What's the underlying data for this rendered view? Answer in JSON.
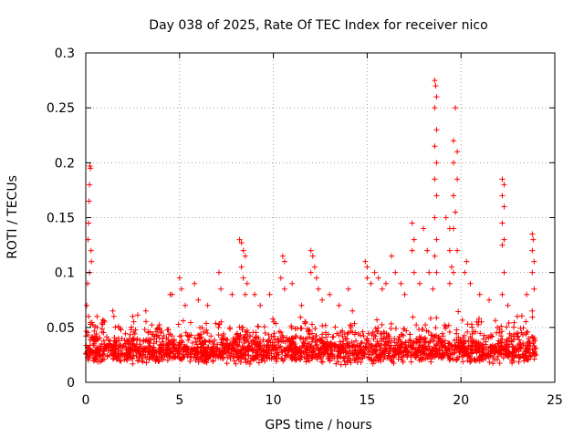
{
  "chart_data": {
    "type": "scatter",
    "title": "Day 038 of 2025, Rate Of TEC Index for receiver nico",
    "xlabel": "GPS time / hours",
    "ylabel": "ROTI / TECUs",
    "xlim": [
      0,
      25
    ],
    "ylim": [
      0,
      0.3
    ],
    "x_ticks": [
      0,
      5,
      10,
      15,
      20,
      25
    ],
    "x_tick_labels": [
      "0",
      "5",
      "10",
      "15",
      "20",
      "25"
    ],
    "y_ticks": [
      0,
      0.05,
      0.1,
      0.15,
      0.2,
      0.25,
      0.3
    ],
    "y_tick_labels": [
      "0",
      "0.05",
      "0.1",
      "0.15",
      "0.2",
      "0.25",
      "0.3"
    ],
    "grid": true,
    "marker": "+",
    "color": "#ff0000",
    "series": [
      {
        "name": "ROTI",
        "points": [
          [
            0.05,
            0.07
          ],
          [
            0.1,
            0.09
          ],
          [
            0.12,
            0.13
          ],
          [
            0.15,
            0.145
          ],
          [
            0.18,
            0.165
          ],
          [
            0.2,
            0.18
          ],
          [
            0.22,
            0.197
          ],
          [
            0.25,
            0.195
          ],
          [
            0.28,
            0.12
          ],
          [
            0.3,
            0.11
          ],
          [
            0.2,
            0.1
          ],
          [
            0.15,
            0.06
          ],
          [
            0.6,
            0.06
          ],
          [
            1.0,
            0.055
          ],
          [
            1.5,
            0.06
          ],
          [
            2.5,
            0.06
          ],
          [
            3.2,
            0.065
          ],
          [
            4.5,
            0.08
          ],
          [
            4.6,
            0.08
          ],
          [
            5.0,
            0.095
          ],
          [
            5.1,
            0.085
          ],
          [
            5.3,
            0.07
          ],
          [
            5.8,
            0.09
          ],
          [
            6.0,
            0.075
          ],
          [
            6.5,
            0.07
          ],
          [
            7.1,
            0.1
          ],
          [
            7.2,
            0.085
          ],
          [
            7.8,
            0.08
          ],
          [
            8.2,
            0.13
          ],
          [
            8.3,
            0.127
          ],
          [
            8.4,
            0.12
          ],
          [
            8.5,
            0.115
          ],
          [
            8.3,
            0.105
          ],
          [
            8.4,
            0.095
          ],
          [
            8.6,
            0.09
          ],
          [
            8.5,
            0.08
          ],
          [
            9.0,
            0.08
          ],
          [
            9.3,
            0.07
          ],
          [
            9.8,
            0.08
          ],
          [
            10.5,
            0.115
          ],
          [
            10.6,
            0.11
          ],
          [
            10.4,
            0.095
          ],
          [
            10.6,
            0.085
          ],
          [
            11.0,
            0.09
          ],
          [
            11.5,
            0.07
          ],
          [
            12.0,
            0.12
          ],
          [
            12.1,
            0.115
          ],
          [
            12.2,
            0.105
          ],
          [
            12.0,
            0.1
          ],
          [
            12.3,
            0.095
          ],
          [
            12.4,
            0.085
          ],
          [
            12.6,
            0.075
          ],
          [
            13.0,
            0.08
          ],
          [
            13.5,
            0.07
          ],
          [
            14.0,
            0.085
          ],
          [
            14.9,
            0.11
          ],
          [
            15.0,
            0.105
          ],
          [
            15.0,
            0.095
          ],
          [
            15.2,
            0.09
          ],
          [
            15.4,
            0.1
          ],
          [
            15.6,
            0.095
          ],
          [
            15.8,
            0.085
          ],
          [
            16.0,
            0.09
          ],
          [
            16.3,
            0.115
          ],
          [
            16.5,
            0.1
          ],
          [
            16.8,
            0.09
          ],
          [
            17.0,
            0.08
          ],
          [
            17.4,
            0.145
          ],
          [
            17.5,
            0.13
          ],
          [
            17.4,
            0.12
          ],
          [
            17.5,
            0.1
          ],
          [
            17.8,
            0.09
          ],
          [
            18.0,
            0.14
          ],
          [
            18.2,
            0.12
          ],
          [
            18.3,
            0.1
          ],
          [
            18.5,
            0.085
          ],
          [
            18.6,
            0.275
          ],
          [
            18.65,
            0.27
          ],
          [
            18.7,
            0.26
          ],
          [
            18.6,
            0.25
          ],
          [
            18.7,
            0.23
          ],
          [
            18.6,
            0.215
          ],
          [
            18.7,
            0.2
          ],
          [
            18.6,
            0.185
          ],
          [
            18.7,
            0.17
          ],
          [
            18.6,
            0.15
          ],
          [
            18.7,
            0.13
          ],
          [
            18.6,
            0.115
          ],
          [
            18.7,
            0.1
          ],
          [
            19.2,
            0.15
          ],
          [
            19.4,
            0.14
          ],
          [
            19.4,
            0.12
          ],
          [
            19.5,
            0.105
          ],
          [
            19.4,
            0.09
          ],
          [
            19.7,
            0.25
          ],
          [
            19.6,
            0.22
          ],
          [
            19.8,
            0.21
          ],
          [
            19.6,
            0.2
          ],
          [
            19.8,
            0.185
          ],
          [
            19.6,
            0.17
          ],
          [
            19.7,
            0.155
          ],
          [
            19.6,
            0.14
          ],
          [
            19.8,
            0.12
          ],
          [
            19.6,
            0.1
          ],
          [
            20.2,
            0.1
          ],
          [
            20.3,
            0.11
          ],
          [
            20.5,
            0.09
          ],
          [
            21.0,
            0.08
          ],
          [
            21.5,
            0.075
          ],
          [
            22.2,
            0.185
          ],
          [
            22.3,
            0.18
          ],
          [
            22.2,
            0.17
          ],
          [
            22.3,
            0.16
          ],
          [
            22.2,
            0.145
          ],
          [
            22.3,
            0.13
          ],
          [
            22.2,
            0.125
          ],
          [
            22.3,
            0.1
          ],
          [
            22.2,
            0.08
          ],
          [
            22.5,
            0.07
          ],
          [
            23.0,
            0.06
          ],
          [
            23.5,
            0.08
          ],
          [
            23.8,
            0.135
          ],
          [
            23.85,
            0.13
          ],
          [
            23.8,
            0.12
          ],
          [
            23.9,
            0.11
          ],
          [
            23.8,
            0.1
          ],
          [
            23.9,
            0.085
          ],
          [
            23.8,
            0.065
          ]
        ],
        "band": {
          "description_values": "dense continuous band of ROTI measurements from 0 to 24 h, roughly 0.01–0.055 TECU/s",
          "x_range": [
            0,
            24
          ],
          "y_range": [
            0.008,
            0.055
          ]
        }
      }
    ]
  }
}
